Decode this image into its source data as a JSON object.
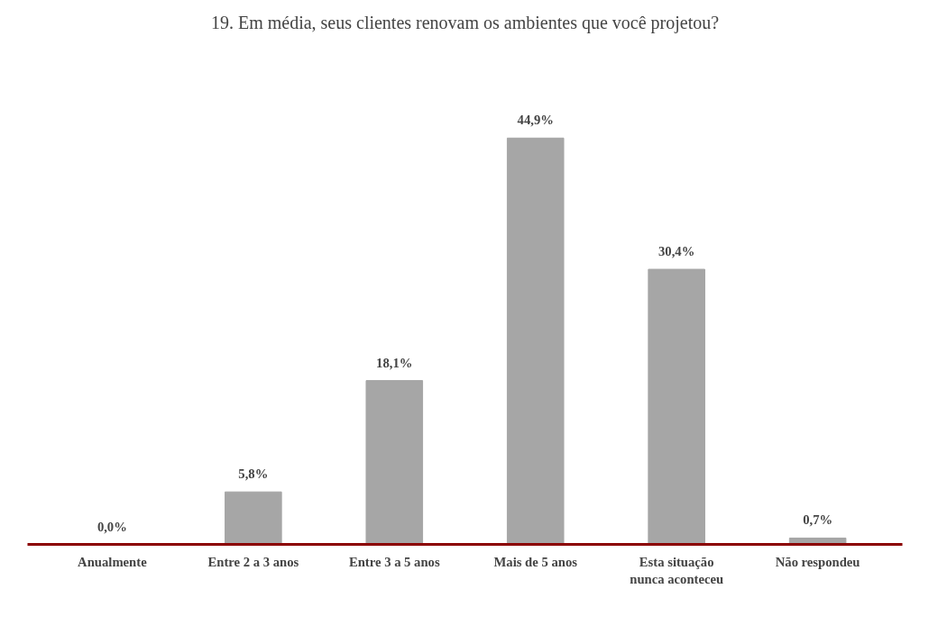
{
  "chart_data": {
    "type": "bar",
    "title": "19. Em média, seus clientes renovam os ambientes que você projetou?",
    "categories": [
      "Anualmente",
      "Entre 2 a 3 anos",
      "Entre 3 a 5 anos",
      "Mais de 5 anos",
      "Esta situação nunca aconteceu",
      "Não respondeu"
    ],
    "values": [
      0.0,
      5.8,
      18.1,
      44.9,
      30.4,
      0.7
    ],
    "value_labels": [
      "0,0%",
      "5,8%",
      "18,1%",
      "44,9%",
      "30,4%",
      "0,7%"
    ],
    "color": "#a6a6a6",
    "grid": false
  }
}
